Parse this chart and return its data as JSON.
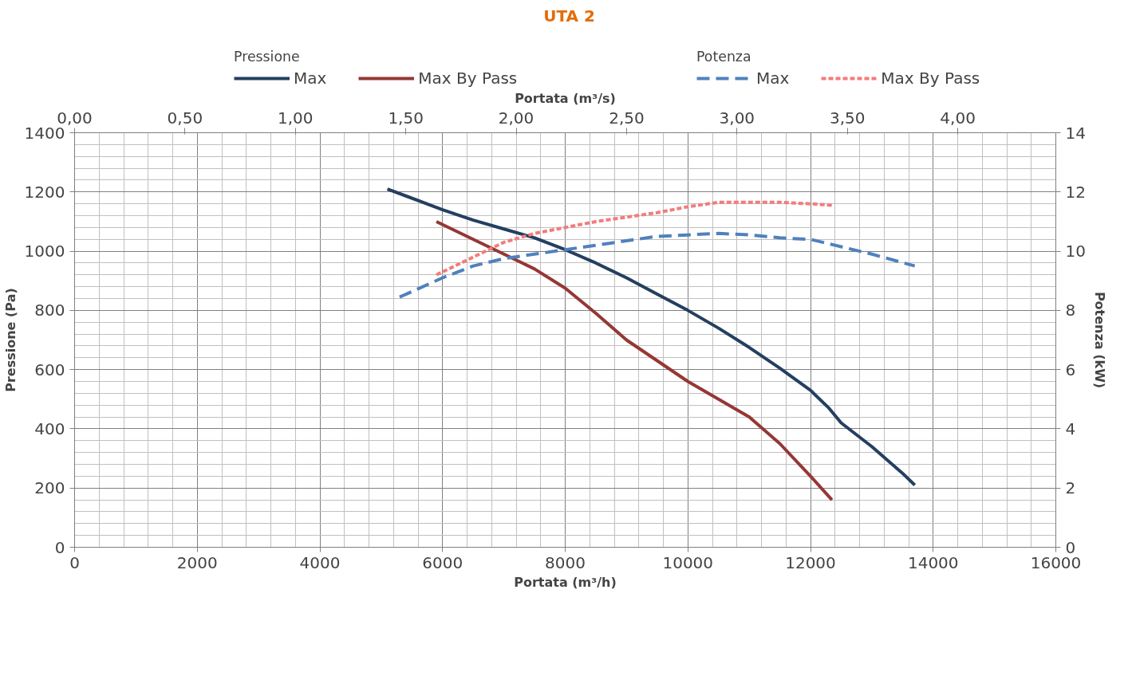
{
  "chart_data": {
    "type": "line",
    "title": "UTA 2",
    "xlabel": "Portata (m³/h)",
    "ylabel": "Pressione (Pa)",
    "y2label": "Potenza (kW)",
    "x2label": "Portata (m³/s)",
    "annotations": [
      "Pressione",
      "Potenza"
    ],
    "xlim": [
      0,
      16000
    ],
    "xticks": [
      0,
      2000,
      4000,
      6000,
      8000,
      10000,
      12000,
      14000,
      16000
    ],
    "ylim": [
      0,
      1400
    ],
    "yticks": [
      0,
      200,
      400,
      600,
      800,
      1000,
      1200,
      1400
    ],
    "y2lim": [
      0,
      14
    ],
    "y2ticks": [
      0,
      2,
      4,
      6,
      8,
      10,
      12,
      14
    ],
    "x2lim": [
      0,
      4.444
    ],
    "x2ticks": [
      {
        "value": 0,
        "label": "0,00"
      },
      {
        "value": 0.5,
        "label": "0,50"
      },
      {
        "value": 1,
        "label": "1,00"
      },
      {
        "value": 1.5,
        "label": "1,50"
      },
      {
        "value": 2,
        "label": "2,00"
      },
      {
        "value": 2.5,
        "label": "2,50"
      },
      {
        "value": 3,
        "label": "3,00"
      },
      {
        "value": 3.5,
        "label": "3,50"
      },
      {
        "value": 4,
        "label": "4,00"
      }
    ],
    "grid": true,
    "legend": "top",
    "marker": "none",
    "series": [
      {
        "name": "Max",
        "color": "#243f60",
        "line_style": "solid",
        "x": [
          5100,
          6000,
          6500,
          7000,
          7500,
          8000,
          8500,
          9000,
          9500,
          10000,
          10500,
          11000,
          11500,
          12000,
          12300,
          12500,
          13000,
          13500,
          13700
        ],
        "values": [
          1210,
          1140,
          1105,
          1075,
          1045,
          1005,
          960,
          910,
          855,
          800,
          740,
          675,
          605,
          530,
          470,
          420,
          340,
          250,
          210
        ]
      },
      {
        "name": "Max By Pass",
        "color": "#953735",
        "line_style": "solid",
        "x": [
          5900,
          6500,
          7000,
          7500,
          8000,
          8500,
          9000,
          9500,
          10000,
          10500,
          11000,
          11500,
          12000,
          12350
        ],
        "values": [
          1100,
          1040,
          990,
          940,
          875,
          790,
          700,
          630,
          560,
          500,
          440,
          350,
          240,
          160
        ]
      },
      {
        "name": "Max",
        "color": "#4f81bd",
        "line_style": "dashed",
        "axis": "y2",
        "x": [
          5300,
          6000,
          6500,
          7000,
          7500,
          8000,
          8500,
          9000,
          9500,
          10000,
          10500,
          11000,
          11500,
          12000,
          12400,
          13000,
          13700
        ],
        "values": [
          8.45,
          9.1,
          9.5,
          9.75,
          9.9,
          10.05,
          10.2,
          10.35,
          10.5,
          10.55,
          10.6,
          10.55,
          10.45,
          10.4,
          10.2,
          9.9,
          9.5
        ]
      },
      {
        "name": "Max By Pass",
        "color": "#f27c7c",
        "line_style": "dotted",
        "axis": "y2",
        "x": [
          5900,
          6500,
          7000,
          7500,
          8000,
          8500,
          9000,
          9500,
          10000,
          10500,
          11000,
          11500,
          12000,
          12350
        ],
        "values": [
          9.2,
          9.8,
          10.3,
          10.6,
          10.8,
          11.0,
          11.15,
          11.3,
          11.5,
          11.65,
          11.65,
          11.65,
          11.6,
          11.55
        ]
      }
    ]
  }
}
